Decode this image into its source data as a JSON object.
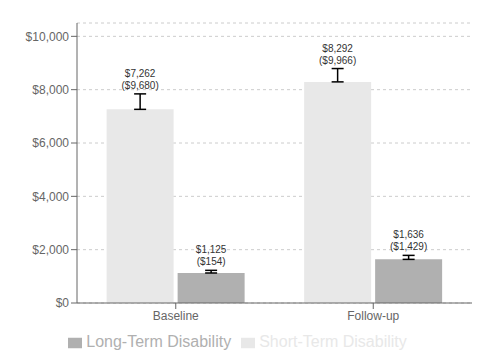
{
  "chart_data": {
    "type": "bar",
    "categories": [
      "Baseline",
      "Follow-up"
    ],
    "series": [
      {
        "name": "Short-Term Disability",
        "color": "#e8e8e8",
        "values": [
          7262,
          8292
        ],
        "upper_errors": [
          580,
          500
        ],
        "value_labels": [
          "$7,262\n($9,680)",
          "$8,292\n($9,966)"
        ]
      },
      {
        "name": "Long-Term Disability",
        "color": "#b0b0b0",
        "values": [
          1125,
          1636
        ],
        "upper_errors": [
          100,
          150
        ],
        "value_labels": [
          "$1,125\n($154)",
          "$1,636\n($1,429)"
        ]
      }
    ],
    "ylim": [
      0,
      10500
    ],
    "yticks": [
      {
        "value": 0,
        "label": "$0"
      },
      {
        "value": 2000,
        "label": "$2,000"
      },
      {
        "value": 4000,
        "label": "$4,000"
      },
      {
        "value": 6000,
        "label": "$6,000"
      },
      {
        "value": 8000,
        "label": "$8,000"
      },
      {
        "value": 10000,
        "label": "$10,000"
      }
    ],
    "grid": true,
    "legend": "bottom",
    "data_labels": true
  }
}
